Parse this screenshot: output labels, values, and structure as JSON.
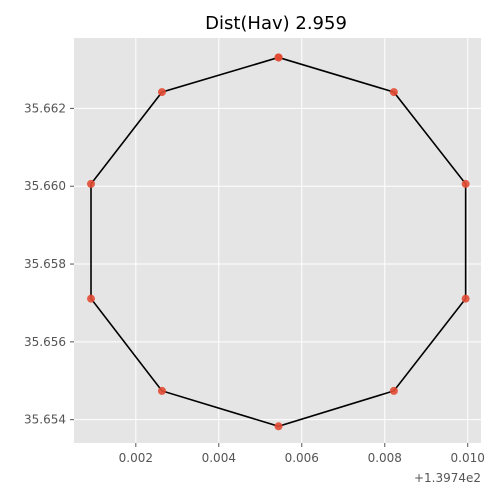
{
  "chart_data": {
    "type": "scatter",
    "title": "Dist(Hav) 2.959",
    "xlabel": "",
    "ylabel": "",
    "x_offset_label": "+1.3974e2",
    "x_tick_values": [
      0.002,
      0.004,
      0.006,
      0.008,
      0.01
    ],
    "x_tick_labels": [
      "0.002",
      "0.004",
      "0.006",
      "0.008",
      "0.010"
    ],
    "y_tick_values": [
      35.654,
      35.656,
      35.658,
      35.66,
      35.662
    ],
    "y_tick_labels": [
      "35.654",
      "35.656",
      "35.658",
      "35.660",
      "35.662"
    ],
    "xlim": [
      0.00051,
      0.01032
    ],
    "ylim": [
      35.6534,
      35.66381
    ],
    "grid": true,
    "background": "#e5e5e5",
    "grid_color": "#ffffff",
    "point_color": "#e24a33",
    "line_color": "#000000",
    "series": [
      {
        "points_x": [
          0.00544,
          0.00822,
          0.00995,
          0.00995,
          0.00822,
          0.00544,
          0.00263,
          0.00092,
          0.00092,
          0.00263,
          0.00544
        ],
        "points_y": [
          35.66331,
          35.66242,
          35.66006,
          35.65711,
          35.65474,
          35.65383,
          35.65474,
          35.65711,
          35.66006,
          35.66242,
          35.66331
        ]
      }
    ]
  }
}
